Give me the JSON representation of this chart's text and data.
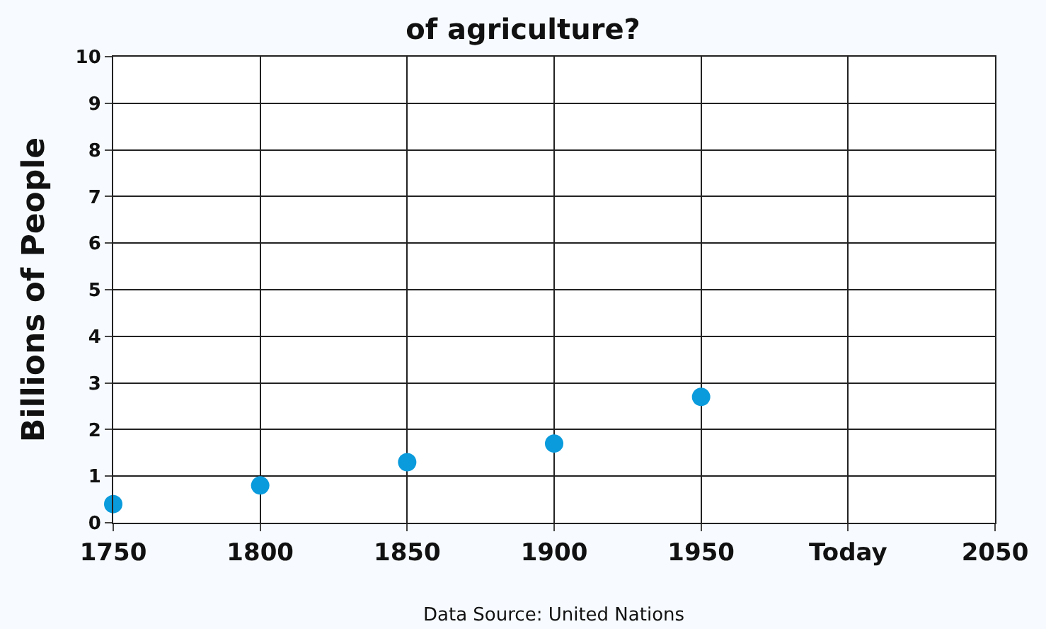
{
  "chart_data": {
    "type": "scatter",
    "title": "of agriculture?",
    "ylabel": "Billions of People",
    "categories": [
      "1750",
      "1800",
      "1850",
      "1900",
      "1950",
      "Today",
      "2050"
    ],
    "series": [
      {
        "color": "#0a9bdc",
        "values": [
          0.4,
          0.8,
          1.3,
          1.7,
          2.7,
          null,
          null
        ]
      }
    ],
    "ylim": [
      0,
      10
    ],
    "yticks": [
      0,
      1,
      2,
      3,
      4,
      5,
      6,
      7,
      8,
      9,
      10
    ],
    "grid": true,
    "marker": "circle",
    "legend": false,
    "annotations": [
      "Data Source: United Nations"
    ]
  }
}
